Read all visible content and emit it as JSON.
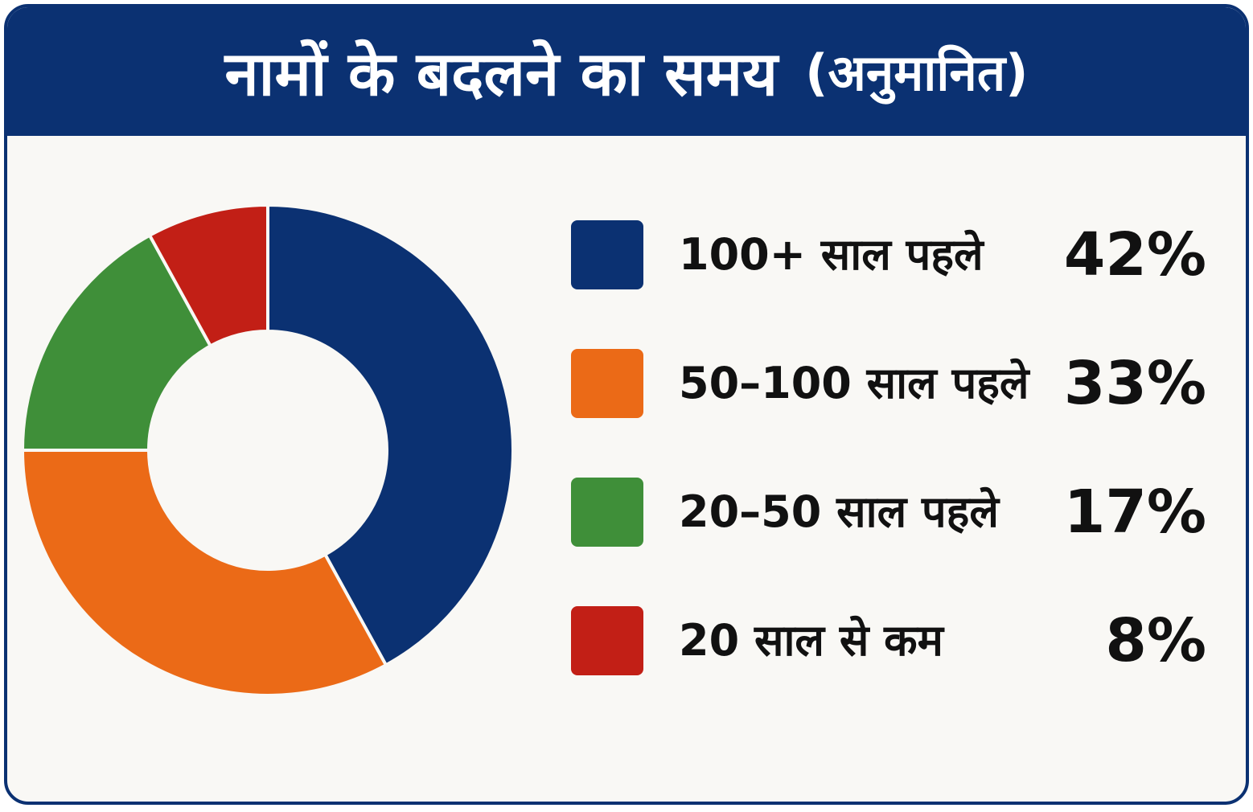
{
  "header": {
    "title": "नामों के बदलने का समय",
    "subtitle": "(अनुमानित)"
  },
  "chart_data": {
    "type": "pie",
    "style": "donut",
    "title": "नामों के बदलने का समय (अनुमानित)",
    "categories": [
      "100+ साल पहले",
      "50–100 साल पहले",
      "20–50 साल पहले",
      "20 साल से कम"
    ],
    "values": [
      42,
      33,
      17,
      8
    ],
    "value_labels": [
      "42%",
      "33%",
      "17%",
      "8%"
    ],
    "colors": [
      "#0b3172",
      "#eb6a17",
      "#3f8f39",
      "#c21f16"
    ],
    "legend": "right",
    "grid": false
  }
}
